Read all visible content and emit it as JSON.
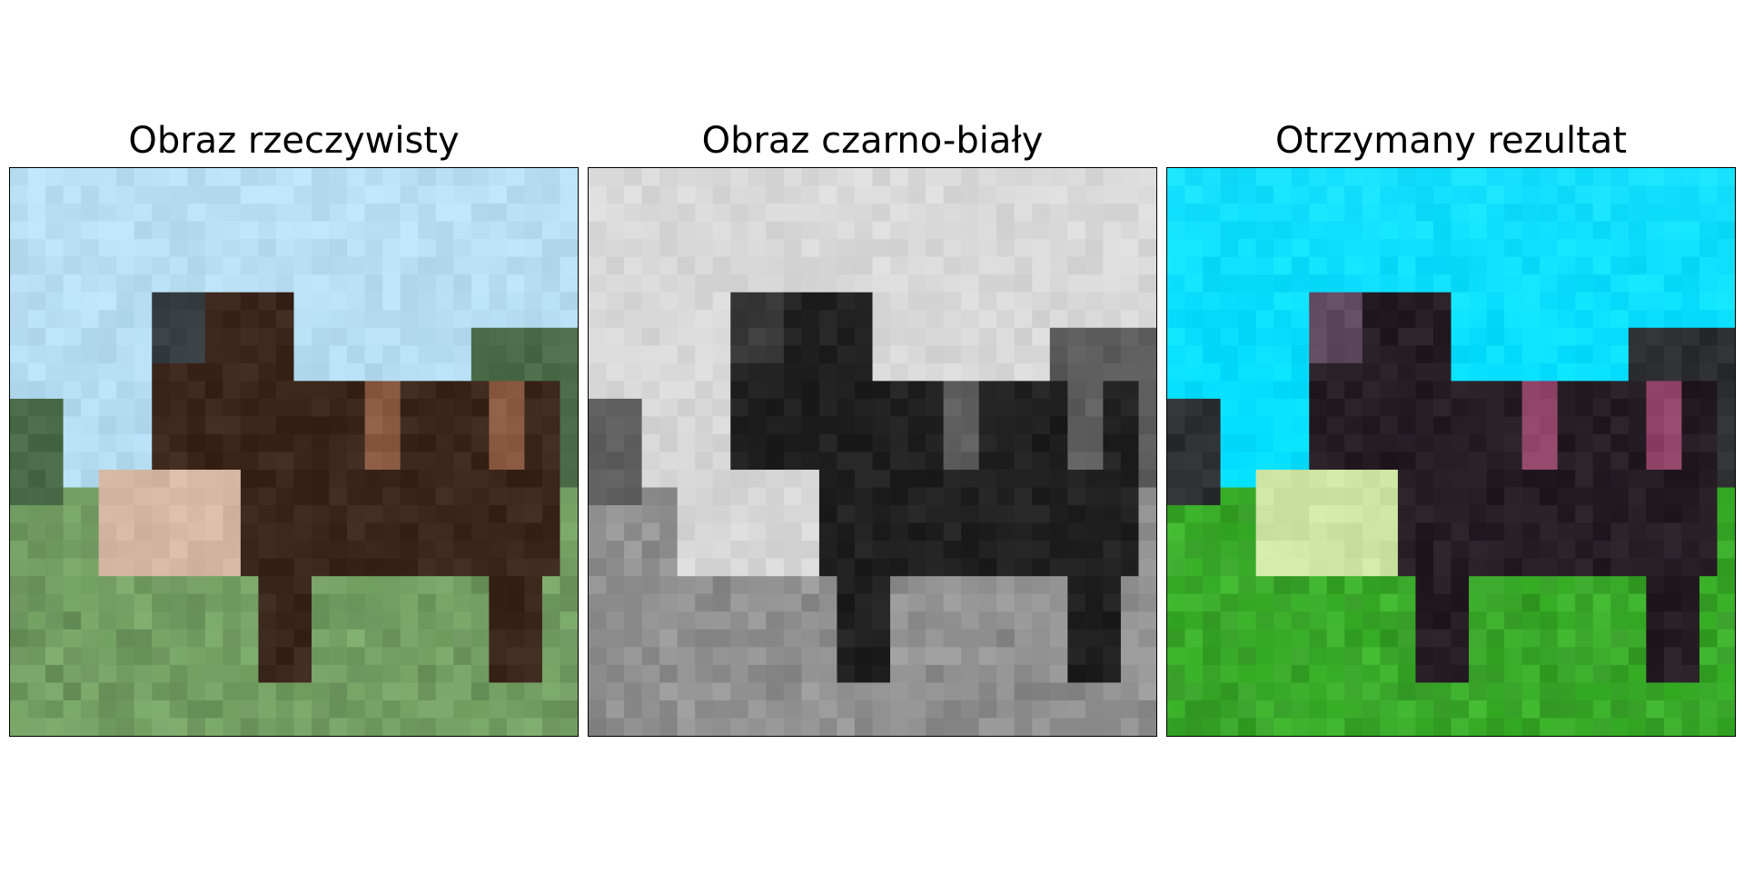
{
  "panels": [
    {
      "title": "Obraz rzeczywisty",
      "style": "real",
      "palette": {
        "sky": "#b3dcf1",
        "tree": "#4a6b47",
        "grass": "#7caa6a",
        "horse": "#3a261b",
        "highlight": "#8a5a42",
        "mane": "#343c3f",
        "light": "#d6b8a4"
      }
    },
    {
      "title": "Obraz czarno-biały",
      "style": "gray",
      "palette": {
        "sky": "#d6d6d6",
        "tree": "#5c5c5c",
        "grass": "#9d9d9d",
        "horse": "#202020",
        "highlight": "#5e5e5e",
        "mane": "#3a3a3a",
        "light": "#d7d7d7"
      }
    },
    {
      "title": "Otrzymany rezultat",
      "style": "result",
      "palette": {
        "sky": "#00ddff",
        "tree": "#2e2f33",
        "grass": "#3db52c",
        "horse": "#261c24",
        "highlight": "#8e4367",
        "mane": "#5f4a61",
        "light": "#cfe5a4"
      }
    }
  ]
}
